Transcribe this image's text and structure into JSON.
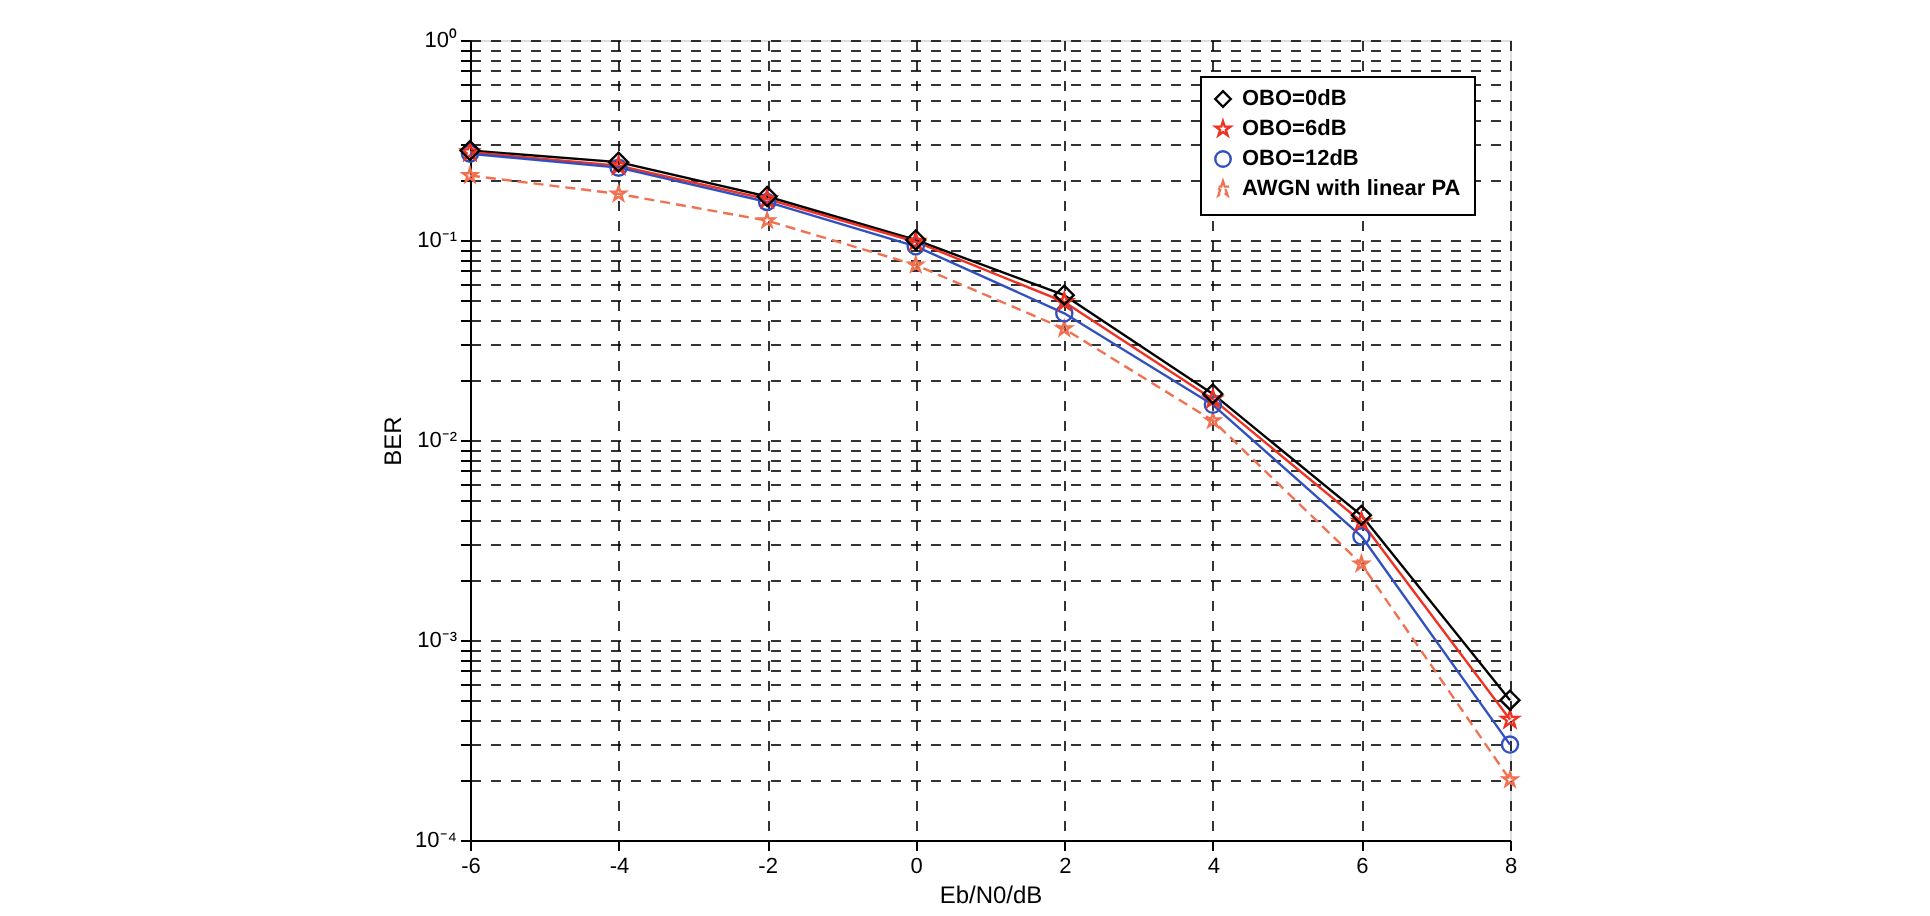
{
  "chart_data": {
    "type": "line",
    "xlabel": "Eb/N0/dB",
    "ylabel": "BER",
    "x": [
      -6,
      -4,
      -2,
      0,
      2,
      4,
      6,
      8
    ],
    "series": [
      {
        "name": "OBO=0dB",
        "color": "#000000",
        "marker": "diamond",
        "line_style": "solid",
        "values": [
          0.28,
          0.245,
          0.165,
          0.1,
          0.053,
          0.017,
          0.0042,
          0.0005
        ]
      },
      {
        "name": "OBO=6dB",
        "color": "#f03020",
        "marker": "star",
        "line_style": "solid",
        "values": [
          0.275,
          0.235,
          0.16,
          0.098,
          0.049,
          0.016,
          0.0039,
          0.0004
        ]
      },
      {
        "name": "OBO=12dB",
        "color": "#3050c0",
        "marker": "circle",
        "line_style": "solid",
        "values": [
          0.27,
          0.23,
          0.155,
          0.093,
          0.043,
          0.015,
          0.0033,
          0.0003
        ]
      },
      {
        "name": "AWGN with linear PA",
        "color": "#f07050",
        "marker": "star",
        "line_style": "dashed",
        "values": [
          0.21,
          0.17,
          0.125,
          0.075,
          0.036,
          0.0125,
          0.0024,
          0.0002
        ]
      }
    ],
    "log": "y",
    "xlim": [
      -6,
      8
    ],
    "xticks": [
      -6,
      -4,
      -2,
      0,
      2,
      4,
      6,
      8
    ],
    "ylim": [
      0.0001,
      1
    ],
    "yticks": [
      {
        "value": 0.0001,
        "label": "10⁻⁴"
      },
      {
        "value": 0.0002,
        "label": null
      },
      {
        "value": 0.0003,
        "label": null
      },
      {
        "value": 0.0004,
        "label": null
      },
      {
        "value": 0.0005,
        "label": null
      },
      {
        "value": 0.0006,
        "label": null
      },
      {
        "value": 0.0007,
        "label": null
      },
      {
        "value": 0.0008,
        "label": null
      },
      {
        "value": 0.0009,
        "label": null
      },
      {
        "value": 0.001,
        "label": "10⁻³"
      },
      {
        "value": 0.002,
        "label": null
      },
      {
        "value": 0.003,
        "label": null
      },
      {
        "value": 0.004,
        "label": null
      },
      {
        "value": 0.005,
        "label": null
      },
      {
        "value": 0.006,
        "label": null
      },
      {
        "value": 0.007,
        "label": null
      },
      {
        "value": 0.008,
        "label": null
      },
      {
        "value": 0.009,
        "label": null
      },
      {
        "value": 0.01,
        "label": "10⁻²"
      },
      {
        "value": 0.02,
        "label": null
      },
      {
        "value": 0.03,
        "label": null
      },
      {
        "value": 0.04,
        "label": null
      },
      {
        "value": 0.05,
        "label": null
      },
      {
        "value": 0.06,
        "label": null
      },
      {
        "value": 0.07,
        "label": null
      },
      {
        "value": 0.08,
        "label": null
      },
      {
        "value": 0.09,
        "label": null
      },
      {
        "value": 0.1,
        "label": "10⁻¹"
      },
      {
        "value": 0.2,
        "label": null
      },
      {
        "value": 0.3,
        "label": null
      },
      {
        "value": 0.4,
        "label": null
      },
      {
        "value": 0.5,
        "label": null
      },
      {
        "value": 0.6,
        "label": null
      },
      {
        "value": 0.7,
        "label": null
      },
      {
        "value": 0.8,
        "label": null
      },
      {
        "value": 0.9,
        "label": null
      },
      {
        "value": 1,
        "label": "10⁰"
      }
    ],
    "grid": true,
    "legend": "top right"
  }
}
